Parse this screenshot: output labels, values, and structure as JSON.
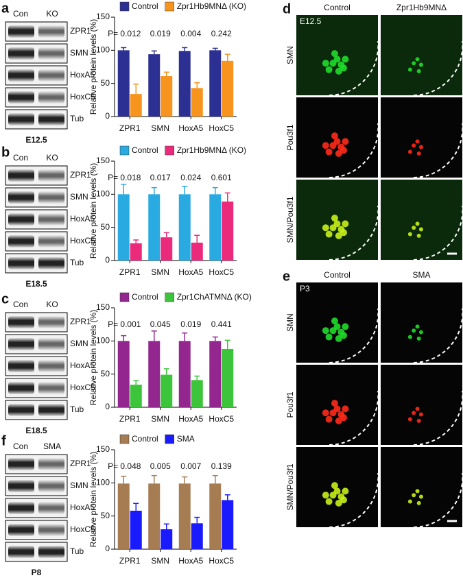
{
  "chart_data": [
    {
      "type": "bar",
      "label": "a",
      "ylabel": "Relative protein levels (%)",
      "categories": [
        "ZPR1",
        "SMN",
        "HoxA5",
        "HoxC5"
      ],
      "series": [
        {
          "name": "Control",
          "color": "#2b3092",
          "values": [
            100,
            94,
            99,
            100
          ],
          "errors": [
            4,
            5,
            5,
            3
          ]
        },
        {
          "name": "Zpr1Hb9MNΔ (KO)",
          "color": "#f7941d",
          "values": [
            34,
            61,
            43,
            84
          ],
          "errors": [
            15,
            6,
            8,
            10
          ]
        }
      ],
      "annotations": [
        "P= 0.012",
        "0.019",
        "0.004",
        "0.242"
      ],
      "ylim": [
        0,
        150
      ],
      "yticks": [
        0,
        50,
        100,
        150
      ]
    },
    {
      "type": "bar",
      "label": "b",
      "ylabel": "Relative protein levels (%)",
      "categories": [
        "ZPR1",
        "SMN",
        "HoxA5",
        "HoxC5"
      ],
      "series": [
        {
          "name": "Control",
          "color": "#29abe2",
          "values": [
            100,
            100,
            100,
            100
          ],
          "errors": [
            15,
            10,
            12,
            10
          ]
        },
        {
          "name": "Zpr1Hb9MNΔ (KO)",
          "color": "#ec2a7b",
          "values": [
            26,
            35,
            27,
            89
          ],
          "errors": [
            5,
            7,
            11,
            13
          ]
        }
      ],
      "annotations": [
        "P= 0.018",
        "0.017",
        "0.024",
        "0.601"
      ],
      "ylim": [
        0,
        150
      ],
      "yticks": [
        0,
        50,
        100,
        150
      ]
    },
    {
      "type": "bar",
      "label": "c",
      "ylabel": "Relative protein levels (%)",
      "categories": [
        "ZPR1",
        "SMN",
        "HoxA5",
        "HoxC5"
      ],
      "series": [
        {
          "name": "Control",
          "color": "#93278f",
          "values": [
            100,
            100,
            100,
            100
          ],
          "errors": [
            8,
            15,
            12,
            6
          ]
        },
        {
          "name": "Zpr1ChATMNΔ (KO)",
          "color": "#3cc43a",
          "values": [
            34,
            49,
            41,
            88
          ],
          "errors": [
            6,
            9,
            6,
            13
          ]
        }
      ],
      "annotations": [
        "P= 0.001",
        "0.045",
        "0.019",
        "0.441"
      ],
      "ylim": [
        0,
        150
      ],
      "yticks": [
        0,
        50,
        100,
        150
      ]
    },
    {
      "type": "bar",
      "label": "f",
      "ylabel": "Relative protein levels (%)",
      "categories": [
        "ZPR1",
        "SMN",
        "HoxA5",
        "HoxC5"
      ],
      "series": [
        {
          "name": "Control",
          "color": "#a67c52",
          "values": [
            99,
            99,
            99,
            99
          ],
          "errors": [
            11,
            12,
            10,
            12
          ]
        },
        {
          "name": "SMA",
          "color": "#1a1aff",
          "values": [
            58,
            30,
            39,
            74
          ],
          "errors": [
            11,
            8,
            9,
            8
          ]
        }
      ],
      "annotations": [
        "P= 0.048",
        "0.005",
        "0.007",
        "0.139"
      ],
      "ylim": [
        0,
        150
      ],
      "yticks": [
        0,
        50,
        100,
        150
      ]
    }
  ],
  "blots": [
    {
      "lanes": [
        "Con",
        "KO"
      ],
      "bands": [
        "ZPR1",
        "SMN",
        "HoxA5",
        "HoxC5",
        "Tub"
      ],
      "stage": "E12.5"
    },
    {
      "lanes": [
        "Con",
        "KO"
      ],
      "bands": [
        "ZPR1",
        "SMN",
        "HoxA5",
        "HoxC5",
        "Tub"
      ],
      "stage": "E18.5"
    },
    {
      "lanes": [
        "Con",
        "KO"
      ],
      "bands": [
        "ZPR1",
        "SMN",
        "HoxA5",
        "HoxC5",
        "Tub"
      ],
      "stage": "E18.5"
    },
    {
      "lanes": [
        "Con",
        "SMA"
      ],
      "bands": [
        "ZPR1",
        "SMN",
        "HoxA5",
        "HoxC5",
        "Tub"
      ],
      "stage": "P8"
    }
  ],
  "images": [
    {
      "label": "d",
      "columns": [
        "Control",
        "Zpr1Hb9MNΔ"
      ],
      "stage": "E12.5",
      "rows": [
        "SMN",
        "Pou3f1",
        "SMN/Pou3f1"
      ]
    },
    {
      "label": "e",
      "columns": [
        "Control",
        "SMA"
      ],
      "stage": "P3",
      "rows": [
        "SMN",
        "Pou3f1",
        "SMN/Pou3f1"
      ]
    }
  ]
}
